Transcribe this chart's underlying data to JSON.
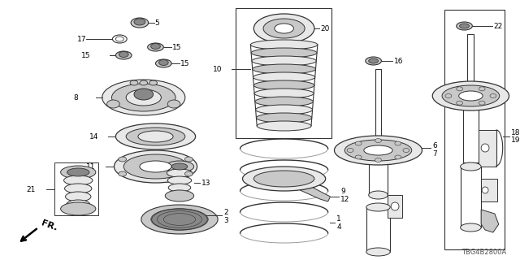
{
  "bg_color": "#ffffff",
  "diagram_code": "TBG4B2800A",
  "fr_label": "FR.",
  "line_color": "#333333",
  "fill_light": "#e8e8e8",
  "fill_mid": "#c8c8c8",
  "fill_dark": "#888888"
}
